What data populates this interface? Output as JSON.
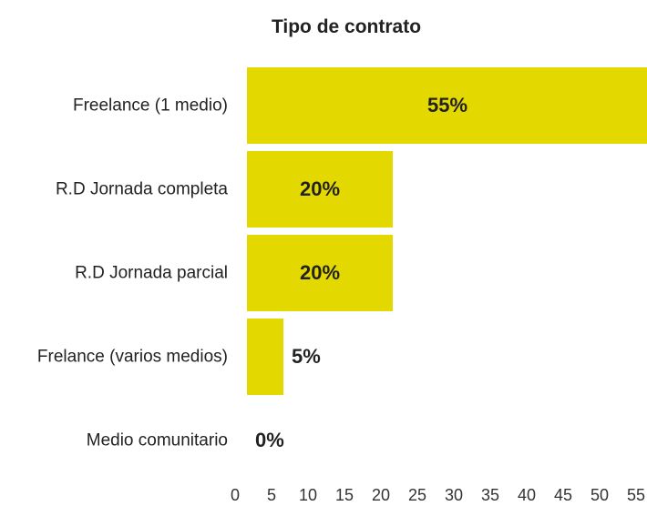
{
  "chart_data": {
    "type": "bar",
    "orientation": "horizontal",
    "title": "Tipo de contrato",
    "categories": [
      "Freelance (1 medio)",
      "R.D Jornada completa",
      "R.D Jornada parcial",
      "Frelance (varios medios)",
      "Medio comunitario"
    ],
    "values": [
      55,
      20,
      20,
      5,
      0
    ],
    "value_labels": [
      "55%",
      "20%",
      "20%",
      "5%",
      "0%"
    ],
    "color": "#e3d900",
    "xlim": [
      0,
      55
    ],
    "xticks": [
      0,
      5,
      10,
      15,
      20,
      25,
      30,
      35,
      40,
      45,
      50,
      55
    ],
    "grid": false
  }
}
